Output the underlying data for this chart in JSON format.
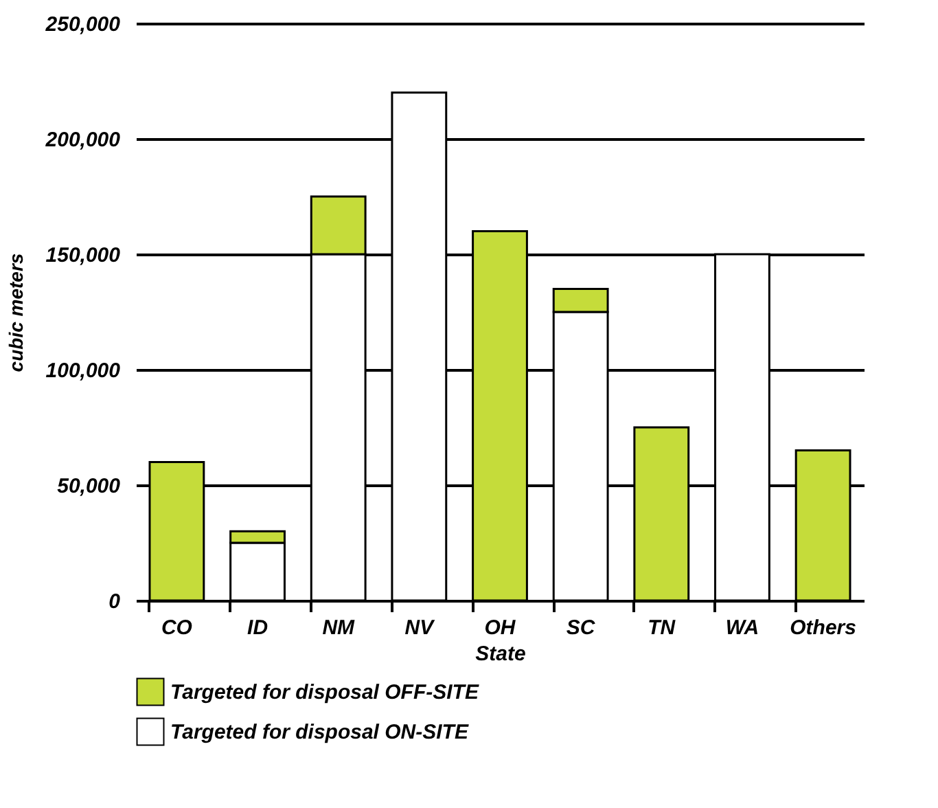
{
  "chart_data": {
    "type": "bar",
    "stacked": true,
    "xlabel": "State",
    "ylabel": "cubic meters",
    "categories": [
      "CO",
      "ID",
      "NM",
      "NV",
      "OH",
      "SC",
      "TN",
      "WA",
      "Others"
    ],
    "series": [
      {
        "name": "Targeted for disposal ON-SITE",
        "color": "#ffffff",
        "values": [
          null,
          25000,
          150000,
          220000,
          null,
          125000,
          null,
          150000,
          null
        ]
      },
      {
        "name": "Targeted for disposal OFF-SITE",
        "color": "#c5dc3a",
        "values": [
          60000,
          5000,
          25000,
          null,
          160000,
          10000,
          75000,
          null,
          65000
        ]
      }
    ],
    "ylim": [
      0,
      250000
    ],
    "yticks": [
      0,
      {
        "value": 50000,
        "label": "50,000"
      },
      {
        "value": 100000,
        "label": "100,000"
      },
      {
        "value": 150000,
        "label": "150,000"
      },
      {
        "value": 200000,
        "label": "200,000"
      },
      {
        "value": 250000,
        "label": "250,000"
      }
    ],
    "grid": "y",
    "legend": "bottom"
  }
}
